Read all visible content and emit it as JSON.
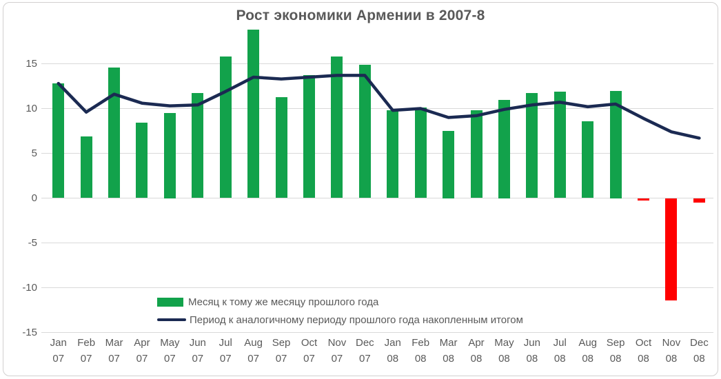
{
  "title": "Рост экономики Армении в 2007-8",
  "chart_data": {
    "type": "bar",
    "title": "Рост экономики Армении в 2007-8",
    "categories": [
      "Jan 07",
      "Feb 07",
      "Mar 07",
      "Apr 07",
      "May 07",
      "Jun 07",
      "Jul 07",
      "Aug 07",
      "Sep 07",
      "Oct 07",
      "Nov 07",
      "Dec 07",
      "Jan 08",
      "Feb 08",
      "Mar 08",
      "Apr 08",
      "May 08",
      "Jun 08",
      "Jul 08",
      "Aug 08",
      "Sep 08",
      "Oct 08",
      "Nov 08",
      "Dec 08"
    ],
    "series": [
      {
        "name": "Месяц к тому же месяцу прошлого года",
        "type": "bar",
        "values": [
          12.8,
          6.9,
          14.6,
          8.4,
          9.5,
          11.7,
          15.8,
          18.8,
          11.3,
          13.7,
          15.8,
          14.9,
          9.8,
          10.1,
          7.5,
          9.8,
          11.0,
          11.7,
          11.9,
          8.6,
          12.0,
          -0.3,
          -11.4,
          -0.5
        ],
        "color": "#12A24B",
        "negative_color": "#FF0000"
      },
      {
        "name": "Период к аналогичному периоду прошлого года накопленным итогом",
        "type": "line",
        "values": [
          12.8,
          9.6,
          11.6,
          10.6,
          10.3,
          10.4,
          11.9,
          13.5,
          13.3,
          13.5,
          13.7,
          13.7,
          9.8,
          10.0,
          9.0,
          9.2,
          9.9,
          10.4,
          10.7,
          10.2,
          10.5,
          8.9,
          7.4,
          6.7
        ],
        "color": "#1B2A52"
      }
    ],
    "xlabel": "",
    "ylabel": "",
    "yticks": [
      15,
      10,
      5,
      0,
      -5,
      -10,
      -15
    ],
    "ylim": [
      -17,
      22
    ],
    "grid": true,
    "grid_color": "#D9D9D9",
    "text_color": "#595959",
    "frame_color": "#D2D0D0",
    "legend_position": "inside-bottom-left"
  }
}
